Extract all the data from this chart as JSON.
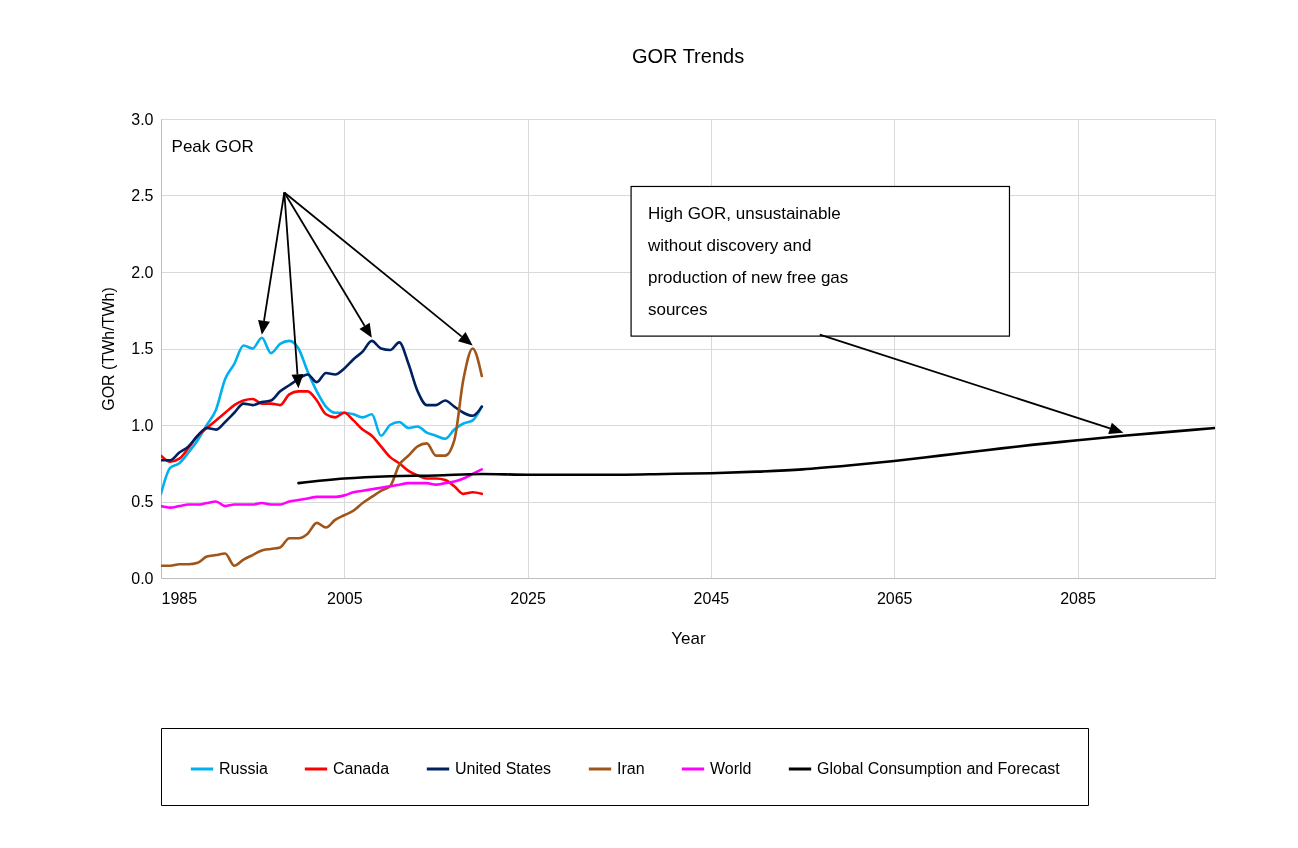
{
  "chart_data": {
    "type": "line",
    "title": "GOR Trends",
    "xlabel": "Year",
    "ylabel": "GOR (TWh/TWh)",
    "xlim": [
      1985,
      2100
    ],
    "xticks": [
      1985,
      2005,
      2025,
      2045,
      2065,
      2085
    ],
    "ylim": [
      0,
      3
    ],
    "yticks": [
      {
        "value": 0,
        "label": "0.0"
      },
      {
        "value": 0.5,
        "label": "0.5"
      },
      {
        "value": 1,
        "label": "1.0"
      },
      {
        "value": 1.5,
        "label": "1.5"
      },
      {
        "value": 2,
        "label": "2.0"
      },
      {
        "value": 2.5,
        "label": "2.5"
      },
      {
        "value": 3,
        "label": "3.0"
      }
    ],
    "grid": true,
    "legend": "bottom",
    "annotations": [
      "Peak GOR",
      "High GOR, unsustainable without discovery and production of new free gas sources"
    ],
    "series": [
      {
        "name": "Russia",
        "color": "#00b0f0",
        "x": [
          1985,
          1986,
          1987,
          1988,
          1989,
          1990,
          1991,
          1992,
          1993,
          1994,
          1995,
          1996,
          1997,
          1998,
          1999,
          2000,
          2001,
          2002,
          2003,
          2004,
          2005,
          2006,
          2007,
          2008,
          2009,
          2010,
          2011,
          2012,
          2013,
          2014,
          2015,
          2016,
          2017,
          2018,
          2019,
          2020
        ],
        "values": [
          0.55,
          0.72,
          0.75,
          0.82,
          0.9,
          1.0,
          1.1,
          1.3,
          1.4,
          1.52,
          1.5,
          1.57,
          1.47,
          1.53,
          1.55,
          1.5,
          1.35,
          1.22,
          1.12,
          1.08,
          1.08,
          1.07,
          1.05,
          1.07,
          0.93,
          1.0,
          1.02,
          0.98,
          0.99,
          0.95,
          0.93,
          0.91,
          0.97,
          1.01,
          1.03,
          1.12
        ]
      },
      {
        "name": "Canada",
        "color": "#ff0000",
        "x": [
          1985,
          1986,
          1987,
          1988,
          1989,
          1990,
          1991,
          1992,
          1993,
          1994,
          1995,
          1996,
          1997,
          1998,
          1999,
          2000,
          2001,
          2002,
          2003,
          2004,
          2005,
          2006,
          2007,
          2008,
          2009,
          2010,
          2011,
          2012,
          2013,
          2014,
          2015,
          2016,
          2017,
          2018,
          2019,
          2020
        ],
        "values": [
          0.8,
          0.76,
          0.78,
          0.85,
          0.93,
          0.98,
          1.03,
          1.08,
          1.13,
          1.16,
          1.17,
          1.14,
          1.14,
          1.13,
          1.2,
          1.22,
          1.22,
          1.16,
          1.07,
          1.05,
          1.08,
          1.03,
          0.97,
          0.93,
          0.86,
          0.79,
          0.75,
          0.7,
          0.67,
          0.65,
          0.65,
          0.64,
          0.6,
          0.55,
          0.56,
          0.55
        ]
      },
      {
        "name": "United States",
        "color": "#002060",
        "x": [
          1985,
          1986,
          1987,
          1988,
          1989,
          1990,
          1991,
          1992,
          1993,
          1994,
          1995,
          1996,
          1997,
          1998,
          1999,
          2000,
          2001,
          2002,
          2003,
          2004,
          2005,
          2006,
          2007,
          2008,
          2009,
          2010,
          2011,
          2012,
          2013,
          2014,
          2015,
          2016,
          2017,
          2018,
          2019,
          2020
        ],
        "values": [
          0.77,
          0.77,
          0.82,
          0.86,
          0.93,
          0.98,
          0.97,
          1.02,
          1.08,
          1.14,
          1.13,
          1.15,
          1.16,
          1.22,
          1.26,
          1.3,
          1.33,
          1.28,
          1.34,
          1.33,
          1.37,
          1.43,
          1.48,
          1.55,
          1.5,
          1.49,
          1.54,
          1.4,
          1.22,
          1.13,
          1.13,
          1.16,
          1.12,
          1.08,
          1.06,
          1.12
        ]
      },
      {
        "name": "Iran",
        "color": "#a0561a",
        "x": [
          1985,
          1986,
          1987,
          1988,
          1989,
          1990,
          1991,
          1992,
          1993,
          1994,
          1995,
          1996,
          1997,
          1998,
          1999,
          2000,
          2001,
          2002,
          2003,
          2004,
          2005,
          2006,
          2007,
          2008,
          2009,
          2010,
          2011,
          2012,
          2013,
          2014,
          2015,
          2016,
          2017,
          2018,
          2019,
          2020
        ],
        "values": [
          0.08,
          0.08,
          0.09,
          0.09,
          0.1,
          0.14,
          0.15,
          0.16,
          0.08,
          0.12,
          0.15,
          0.18,
          0.19,
          0.2,
          0.26,
          0.26,
          0.29,
          0.36,
          0.33,
          0.38,
          0.41,
          0.44,
          0.49,
          0.53,
          0.57,
          0.6,
          0.74,
          0.8,
          0.86,
          0.88,
          0.8,
          0.8,
          0.9,
          1.3,
          1.5,
          1.32
        ]
      },
      {
        "name": "World",
        "color": "#ff00ff",
        "x": [
          1985,
          1986,
          1987,
          1988,
          1989,
          1990,
          1991,
          1992,
          1993,
          1994,
          1995,
          1996,
          1997,
          1998,
          1999,
          2000,
          2001,
          2002,
          2003,
          2004,
          2005,
          2006,
          2007,
          2008,
          2009,
          2010,
          2011,
          2012,
          2013,
          2014,
          2015,
          2016,
          2017,
          2018,
          2019,
          2020
        ],
        "values": [
          0.47,
          0.46,
          0.47,
          0.48,
          0.48,
          0.49,
          0.5,
          0.47,
          0.48,
          0.48,
          0.48,
          0.49,
          0.48,
          0.48,
          0.5,
          0.51,
          0.52,
          0.53,
          0.53,
          0.53,
          0.54,
          0.56,
          0.57,
          0.58,
          0.59,
          0.6,
          0.61,
          0.62,
          0.62,
          0.62,
          0.61,
          0.62,
          0.63,
          0.65,
          0.68,
          0.71
        ]
      },
      {
        "name": "Global Consumption and Forecast",
        "color": "#000000",
        "x": [
          2000,
          2005,
          2010,
          2015,
          2020,
          2025,
          2030,
          2035,
          2040,
          2045,
          2050,
          2055,
          2060,
          2065,
          2070,
          2075,
          2080,
          2085,
          2090,
          2095,
          2100
        ],
        "values": [
          0.62,
          0.65,
          0.665,
          0.67,
          0.68,
          0.675,
          0.675,
          0.675,
          0.68,
          0.685,
          0.695,
          0.71,
          0.735,
          0.765,
          0.8,
          0.835,
          0.87,
          0.9,
          0.93,
          0.955,
          0.98
        ]
      }
    ]
  }
}
